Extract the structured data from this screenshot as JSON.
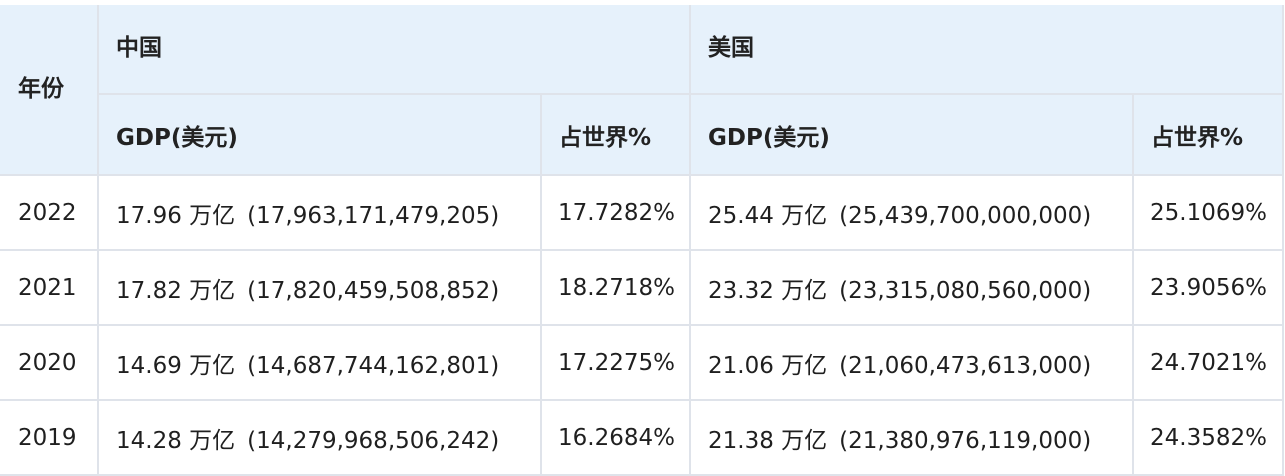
{
  "table": {
    "header": {
      "year": "年份",
      "china": "中国",
      "usa": "美国",
      "gdp_usd": "GDP(美元)",
      "world_share": "占世界%"
    },
    "rows": [
      {
        "year": "2022",
        "cn_gdp_short": "17.96 万亿",
        "cn_gdp_full": "(17,963,171,479,205)",
        "cn_pct": "17.7282%",
        "us_gdp_short": "25.44 万亿",
        "us_gdp_full": "(25,439,700,000,000)",
        "us_pct": "25.1069%"
      },
      {
        "year": "2021",
        "cn_gdp_short": "17.82 万亿",
        "cn_gdp_full": "(17,820,459,508,852)",
        "cn_pct": "18.2718%",
        "us_gdp_short": "23.32 万亿",
        "us_gdp_full": "(23,315,080,560,000)",
        "us_pct": "23.9056%"
      },
      {
        "year": "2020",
        "cn_gdp_short": "14.69 万亿",
        "cn_gdp_full": "(14,687,744,162,801)",
        "cn_pct": "17.2275%",
        "us_gdp_short": "21.06 万亿",
        "us_gdp_full": "(21,060,473,613,000)",
        "us_pct": "24.7021%"
      },
      {
        "year": "2019",
        "cn_gdp_short": "14.28 万亿",
        "cn_gdp_full": "(14,279,968,506,242)",
        "cn_pct": "16.2684%",
        "us_gdp_short": "21.38 万亿",
        "us_gdp_full": "(21,380,976,119,000)",
        "us_pct": "24.3582%"
      }
    ]
  }
}
